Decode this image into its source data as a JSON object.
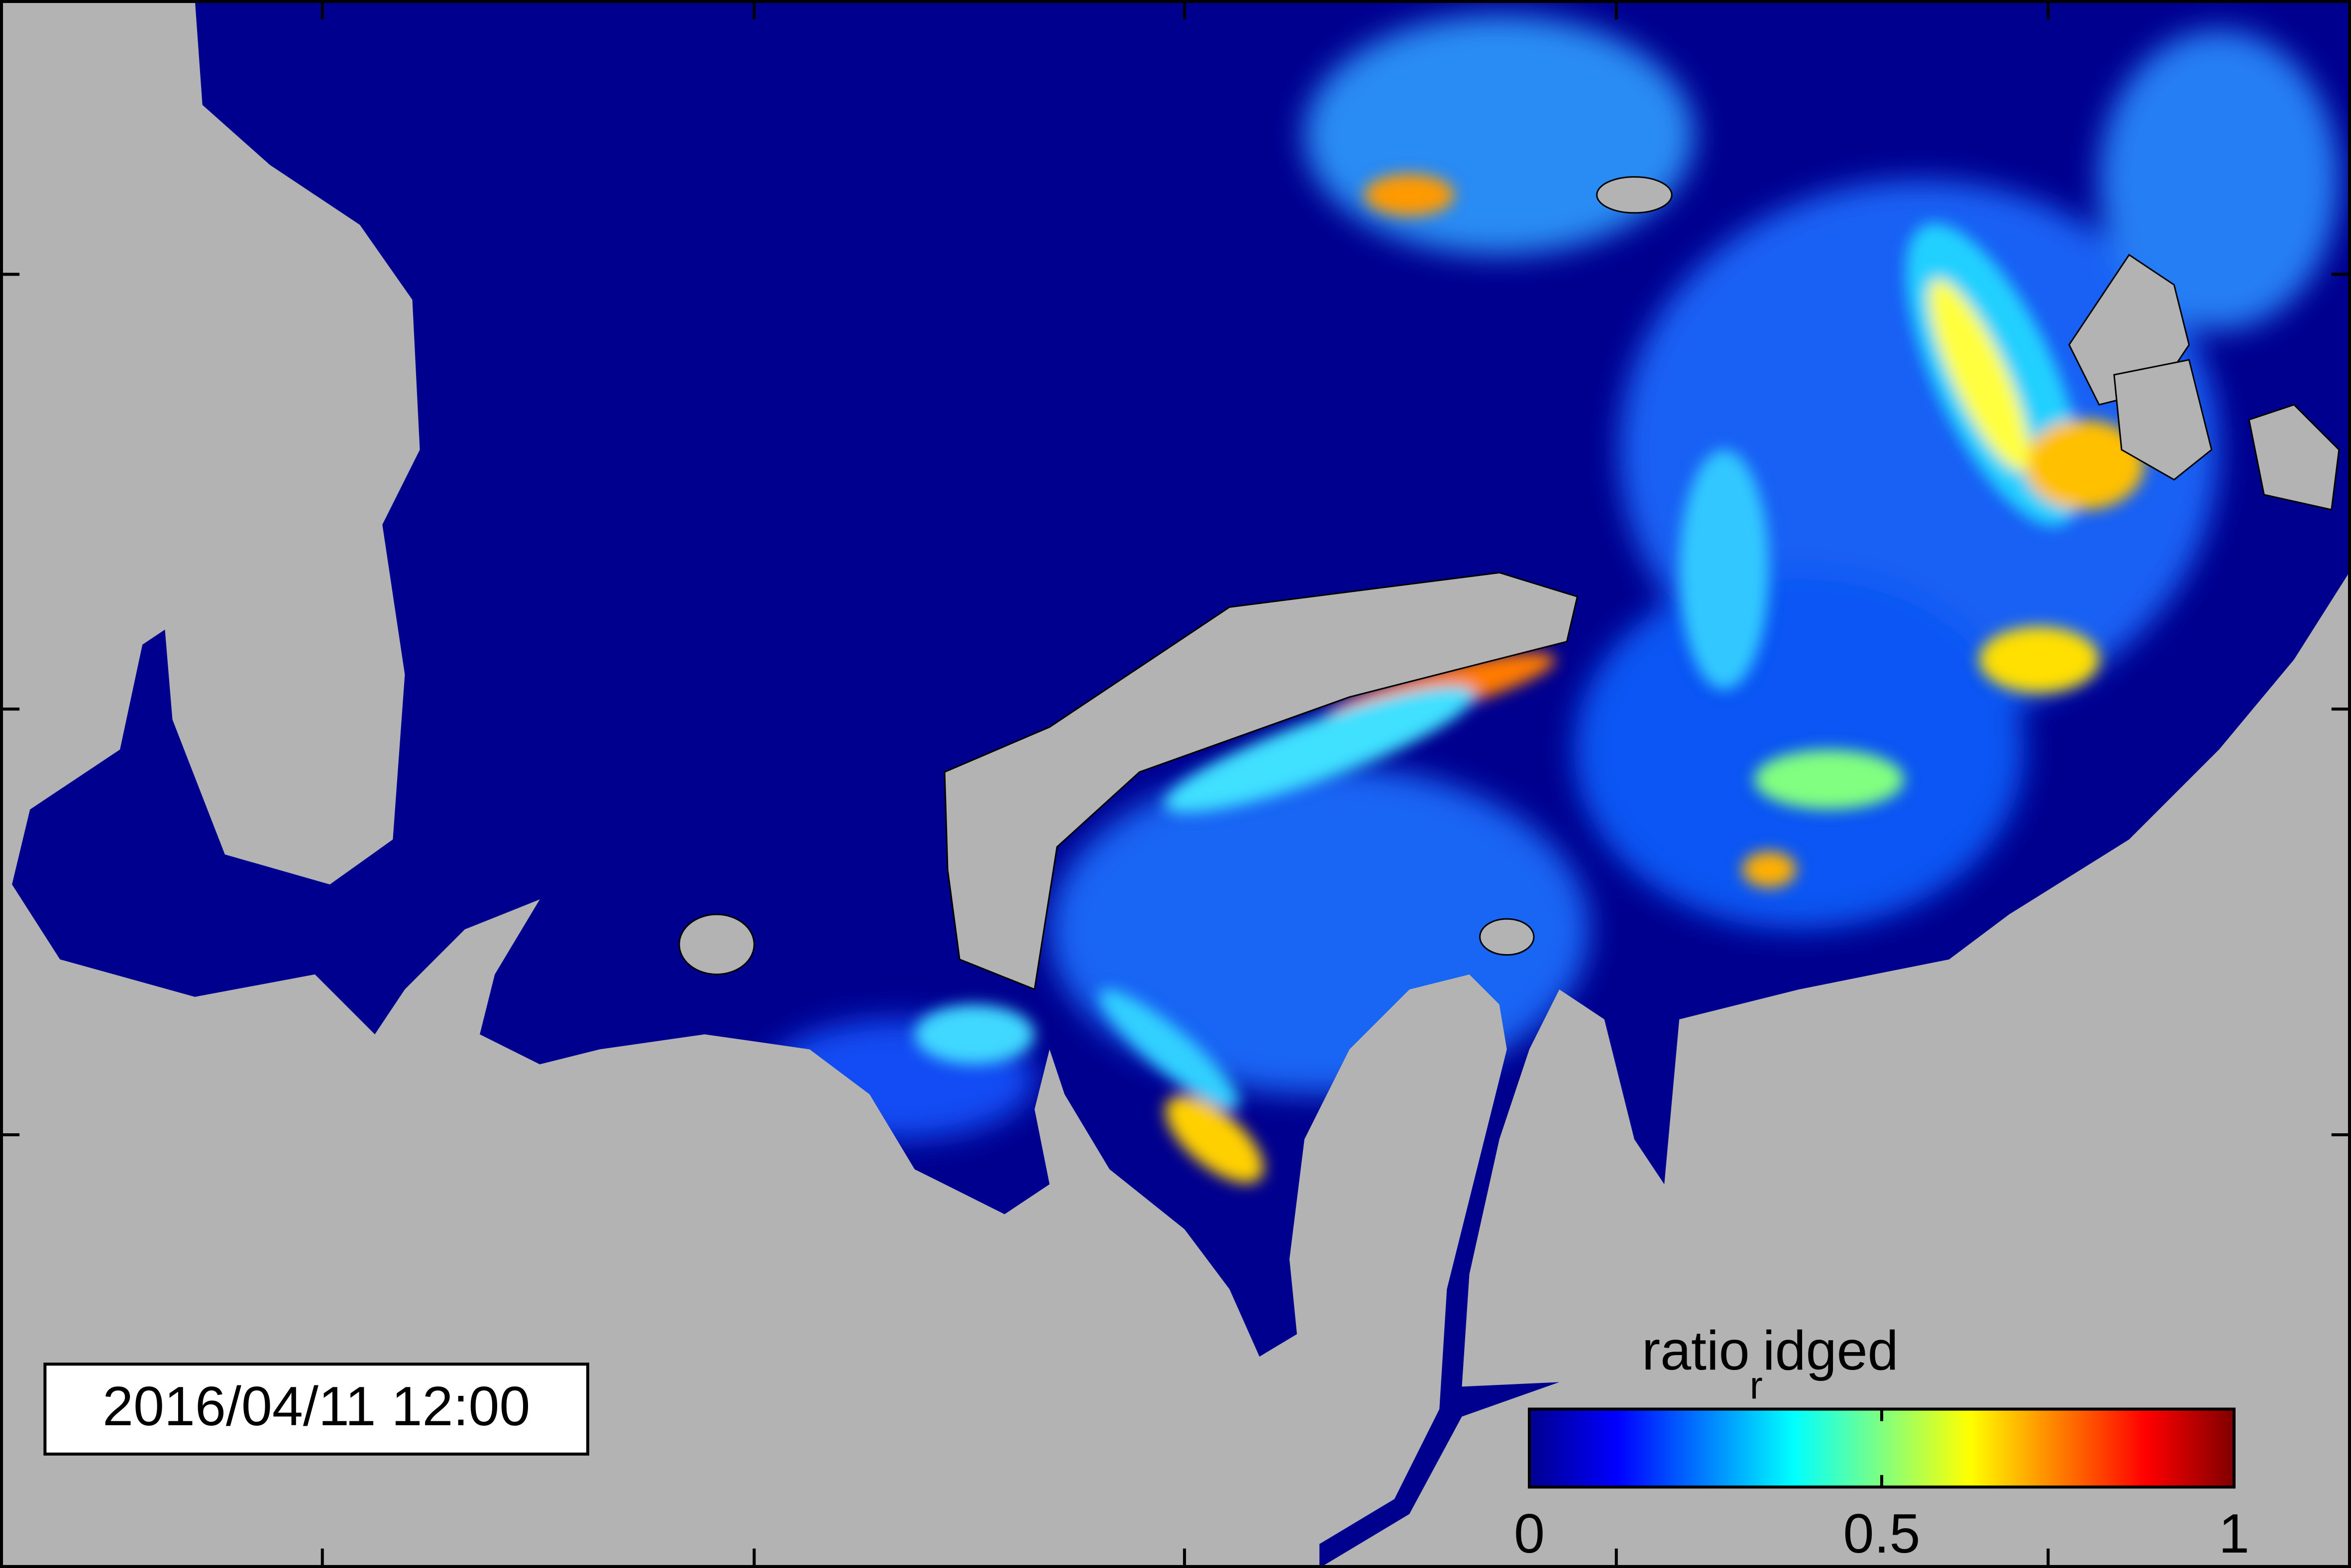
{
  "timestamp": "2016/04/11 12:00",
  "colorbar": {
    "label": {
      "main": "ratio",
      "sub": "r",
      "rest": "idged"
    },
    "colormap": "jet",
    "lim": [
      0,
      1
    ],
    "ticks": [
      0,
      0.5,
      1
    ]
  }
}
